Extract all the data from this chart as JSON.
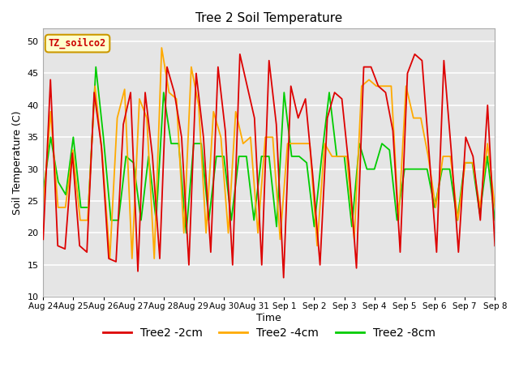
{
  "title": "Tree 2 Soil Temperature",
  "xlabel": "Time",
  "ylabel": "Soil Temperature (C)",
  "ylim": [
    10,
    52
  ],
  "yticks": [
    10,
    15,
    20,
    25,
    30,
    35,
    40,
    45,
    50
  ],
  "x_labels": [
    "Aug 24",
    "Aug 25",
    "Aug 26",
    "Aug 27",
    "Aug 28",
    "Aug 29",
    "Aug 30",
    "Aug 31",
    "Sep 1",
    "Sep 2",
    "Sep 3",
    "Sep 4",
    "Sep 5",
    "Sep 6",
    "Sep 7",
    "Sep 8"
  ],
  "bg_color": "#e5e5e5",
  "grid_color": "#cccccc",
  "legend_label": "TZ_soilco2",
  "line_colors": [
    "#dd0000",
    "#ffaa00",
    "#00cc00"
  ],
  "line_labels": [
    "Tree2 -2cm",
    "Tree2 -4cm",
    "Tree2 -8cm"
  ],
  "series_2cm": [
    19,
    44,
    18,
    17.5,
    32.5,
    18,
    17,
    42,
    33.5,
    16,
    15.5,
    37,
    42,
    14,
    42,
    32,
    16,
    46,
    42,
    35,
    15,
    45,
    35,
    17,
    46,
    36,
    15,
    48,
    43,
    38,
    15,
    47,
    37,
    13,
    43,
    38,
    41,
    29,
    15,
    38,
    42,
    41,
    30,
    14.5,
    46,
    46,
    43,
    42,
    36,
    17,
    45,
    48,
    47,
    32,
    17,
    47,
    33,
    17,
    35,
    32,
    22,
    40,
    18
  ],
  "series_4cm": [
    24,
    39,
    24,
    24,
    33,
    22,
    22,
    43,
    32,
    16,
    38,
    42.5,
    16,
    41,
    38,
    16,
    49,
    42,
    41,
    20,
    46,
    40,
    20,
    39,
    35,
    20,
    39,
    34,
    35,
    20,
    35,
    35,
    19,
    34,
    34,
    34,
    34,
    18,
    34,
    32,
    32,
    32,
    19,
    43,
    44,
    43,
    43,
    43,
    22,
    43,
    38,
    38,
    32,
    24,
    32,
    32,
    22,
    31,
    31,
    24,
    34,
    24
  ],
  "series_8cm": [
    26.5,
    35,
    28,
    26,
    35,
    24,
    24,
    46,
    35,
    22,
    22,
    32,
    31,
    22,
    32,
    22,
    42,
    34,
    34,
    20,
    34,
    34,
    22,
    32,
    32,
    22,
    32,
    32,
    22,
    32,
    32,
    21,
    42,
    32,
    32,
    31,
    21,
    32,
    42,
    32,
    32,
    21,
    34,
    30,
    30,
    34,
    33,
    22,
    30,
    30,
    30,
    30,
    24,
    30,
    30,
    22,
    31,
    31,
    23,
    32,
    22
  ],
  "n_ticks": 16,
  "figsize": [
    6.4,
    4.8
  ],
  "dpi": 100
}
